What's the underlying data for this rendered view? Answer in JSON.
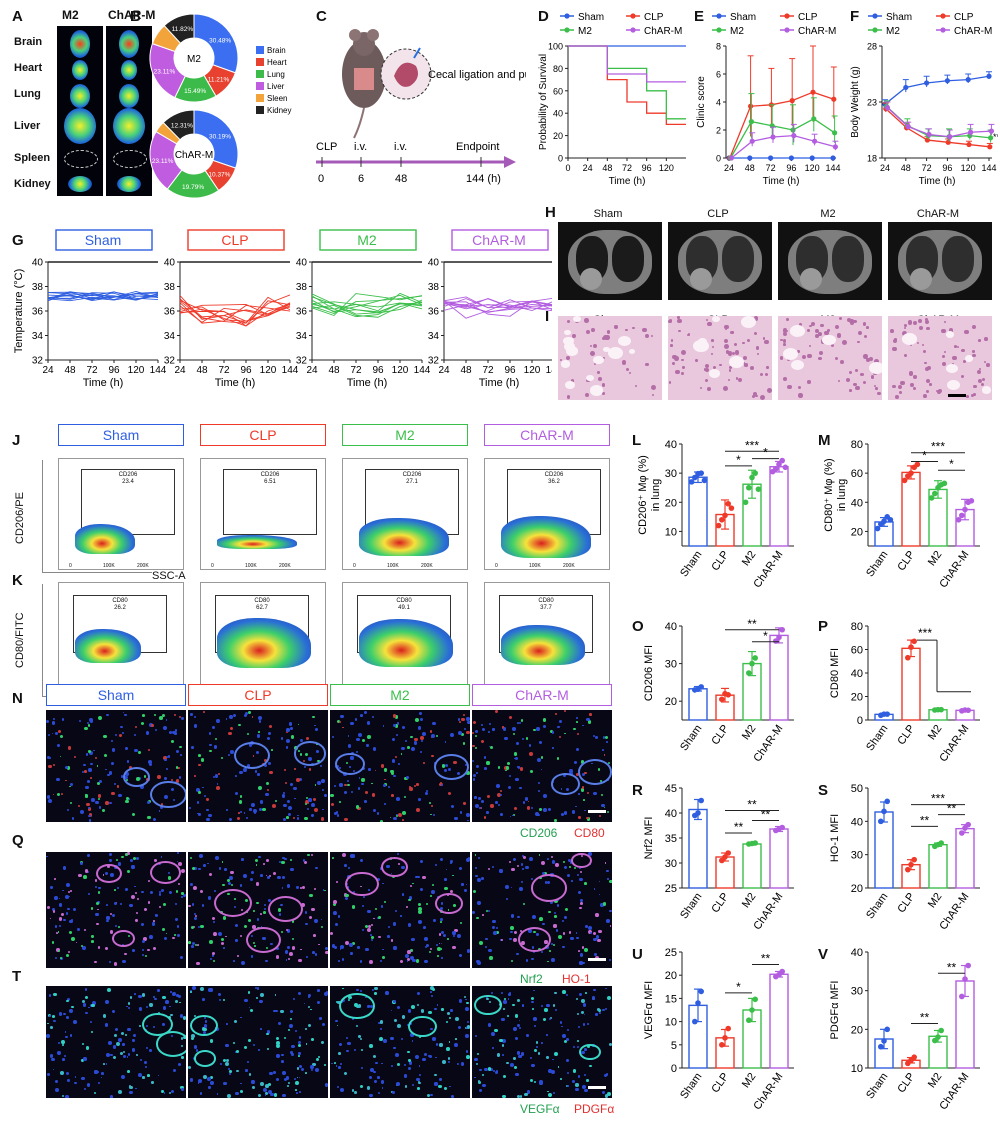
{
  "panels": {
    "A": "A",
    "B": "B",
    "C": "C",
    "D": "D",
    "E": "E",
    "F": "F",
    "G": "G",
    "H": "H",
    "I": "I",
    "J": "J",
    "K": "K",
    "L": "L",
    "M": "M",
    "N": "N",
    "O": "O",
    "P": "P",
    "Q": "Q",
    "R": "R",
    "S": "S",
    "T": "T",
    "U": "U",
    "V": "V"
  },
  "colors": {
    "sham": "#2f5fe0",
    "clp": "#ef3a2a",
    "m2": "#3bbf4a",
    "charm": "#b35de0"
  },
  "panelA": {
    "col1": "M2",
    "col2": "ChAR-M",
    "organs": [
      "Brain",
      "Heart",
      "Lung",
      "Liver",
      "Spleen",
      "Kidney"
    ]
  },
  "panelB": {
    "legend": [
      "Brain",
      "Heart",
      "Lung",
      "Liver",
      "Sleen",
      "Kidney"
    ],
    "legend_colors": [
      "#3b6ef0",
      "#e8412f",
      "#3dbb4a",
      "#c05ce0",
      "#f2a33a",
      "#222222"
    ],
    "donut1": {
      "center": "M2",
      "values": [
        30.48,
        11.21,
        15.49,
        23.11,
        7.89,
        11.82
      ],
      "labels": [
        "30.48%",
        "11.21%",
        "15.49%",
        "23.11%",
        "",
        "11.82%"
      ]
    },
    "donut2": {
      "center": "ChAR-M",
      "values": [
        30.19,
        10.37,
        19.79,
        23.11,
        4.23,
        12.31
      ],
      "labels": [
        "30.19%",
        "10.37%",
        "19.79%",
        "23.11%",
        "",
        "12.31%"
      ]
    }
  },
  "panelC": {
    "model": "Cecal ligation and puncture (CLP) model",
    "events": [
      "CLP",
      "i.v.",
      "i.v.",
      "Endpoint"
    ],
    "ticks": [
      "0",
      "6",
      "48",
      "144 (h)"
    ]
  },
  "chart_data": [
    {
      "id": "D",
      "type": "line",
      "xlabel": "Time (h)",
      "ylabel": "Probability of Survival",
      "x_ticks": [
        0,
        24,
        48,
        72,
        96,
        120
      ],
      "y_ticks": [
        0,
        20,
        40,
        60,
        80,
        100
      ],
      "xlim": [
        0,
        144
      ],
      "ylim": [
        0,
        100
      ],
      "series": [
        {
          "name": "Sham",
          "steps": [
            [
              0,
              100
            ],
            [
              144,
              100
            ]
          ]
        },
        {
          "name": "CLP",
          "steps": [
            [
              0,
              100
            ],
            [
              48,
              100
            ],
            [
              48,
              70
            ],
            [
              72,
              70
            ],
            [
              72,
              50
            ],
            [
              96,
              50
            ],
            [
              96,
              40
            ],
            [
              120,
              40
            ],
            [
              120,
              30
            ],
            [
              144,
              30
            ]
          ]
        },
        {
          "name": "M2",
          "steps": [
            [
              0,
              100
            ],
            [
              48,
              100
            ],
            [
              48,
              80
            ],
            [
              96,
              80
            ],
            [
              96,
              60
            ],
            [
              120,
              60
            ],
            [
              120,
              35
            ],
            [
              144,
              35
            ]
          ]
        },
        {
          "name": "ChAR-M",
          "steps": [
            [
              0,
              100
            ],
            [
              48,
              100
            ],
            [
              48,
              75
            ],
            [
              96,
              75
            ],
            [
              96,
              68
            ],
            [
              144,
              68
            ]
          ]
        }
      ]
    },
    {
      "id": "E",
      "type": "line",
      "xlabel": "Time (h)",
      "ylabel": "Clinic score",
      "x": [
        24,
        48,
        72,
        96,
        120,
        144
      ],
      "y_ticks": [
        0,
        2,
        4,
        6,
        8
      ],
      "ylim": [
        0,
        8
      ],
      "series": [
        {
          "name": "Sham",
          "values": [
            0,
            0,
            0,
            0,
            0,
            0
          ],
          "err": [
            0,
            0,
            0,
            0,
            0,
            0
          ]
        },
        {
          "name": "CLP",
          "values": [
            0,
            3.7,
            3.8,
            4.1,
            4.7,
            4.2
          ],
          "err": [
            0,
            3.6,
            2.6,
            3.0,
            3.5,
            2.3
          ]
        },
        {
          "name": "M2",
          "values": [
            0,
            2.6,
            2.3,
            2.0,
            2.8,
            1.8
          ],
          "err": [
            0,
            2.0,
            1.5,
            1.8,
            1.5,
            1.2
          ]
        },
        {
          "name": "ChAR-M",
          "values": [
            0,
            1.2,
            1.5,
            1.6,
            1.2,
            0.8
          ],
          "err": [
            0,
            0.6,
            0.7,
            0.8,
            0.5,
            0.4
          ]
        }
      ]
    },
    {
      "id": "F",
      "type": "line",
      "xlabel": "Time (h)",
      "ylabel": "Body Weight (g)",
      "x": [
        24,
        48,
        72,
        96,
        120,
        144
      ],
      "y_ticks": [
        18,
        23,
        28
      ],
      "ylim": [
        18,
        28
      ],
      "annotation": "**",
      "series": [
        {
          "name": "Sham",
          "values": [
            22.8,
            24.3,
            24.7,
            24.9,
            25.0,
            25.3
          ],
          "err": [
            0.4,
            0.7,
            0.6,
            0.5,
            0.5,
            0.4
          ]
        },
        {
          "name": "CLP",
          "values": [
            22.4,
            20.7,
            19.6,
            19.4,
            19.2,
            19.0
          ],
          "err": [
            0.5,
            0.4,
            0.3,
            0.3,
            0.3,
            0.3
          ]
        },
        {
          "name": "M2",
          "values": [
            22.6,
            20.9,
            20.0,
            19.9,
            20.0,
            19.8
          ],
          "err": [
            0.5,
            0.6,
            0.6,
            0.7,
            0.6,
            0.7
          ]
        },
        {
          "name": "ChAR-M",
          "values": [
            22.5,
            20.8,
            20.1,
            19.9,
            20.3,
            20.4
          ],
          "err": [
            0.5,
            0.4,
            0.5,
            0.6,
            0.7,
            0.6
          ]
        }
      ]
    },
    {
      "id": "L",
      "type": "bar",
      "ylabel": "CD206⁺ Mφ (%) in lung",
      "categories": [
        "Sham",
        "CLP",
        "M2",
        "ChAR-M"
      ],
      "ylim": [
        5,
        40
      ],
      "y_ticks": [
        10,
        20,
        30,
        40
      ],
      "values": [
        28.6,
        15.8,
        26.2,
        32.2
      ],
      "err": [
        1.8,
        5.0,
        4.8,
        1.8
      ],
      "points": [
        [
          27,
          28.5,
          29.8,
          30,
          27.5
        ],
        [
          12,
          14,
          15.5,
          19.5,
          18
        ],
        [
          20,
          25,
          28.5,
          30,
          24.5
        ],
        [
          30.5,
          31.5,
          33,
          34.3,
          32
        ]
      ],
      "sig": [
        {
          "a": 1,
          "b": 3,
          "text": "***",
          "y": 37.5
        },
        {
          "a": 2,
          "b": 3,
          "text": "*",
          "y": 35
        },
        {
          "a": 1,
          "b": 2,
          "text": "*",
          "y": 32.5
        }
      ]
    },
    {
      "id": "M",
      "type": "bar",
      "ylabel": "CD80⁺ Mφ (%) in lung",
      "categories": [
        "Sham",
        "CLP",
        "M2",
        "ChAR-M"
      ],
      "ylim": [
        10,
        80
      ],
      "y_ticks": [
        20,
        40,
        60,
        80
      ],
      "values": [
        26.5,
        60.5,
        48.8,
        35.0
      ],
      "err": [
        3.0,
        4.5,
        6.0,
        7.0
      ],
      "points": [
        [
          22,
          25,
          27,
          30,
          28
        ],
        [
          55,
          58,
          60,
          64,
          66
        ],
        [
          43,
          46,
          50,
          52,
          53
        ],
        [
          28,
          31,
          35,
          40,
          41
        ]
      ],
      "sig": [
        {
          "a": 1,
          "b": 3,
          "text": "***",
          "y": 74
        },
        {
          "a": 1,
          "b": 2,
          "text": "*",
          "y": 68
        },
        {
          "a": 2,
          "b": 3,
          "text": "*",
          "y": 62
        }
      ]
    },
    {
      "id": "O",
      "type": "bar",
      "ylabel": "CD206 MFI",
      "categories": [
        "Sham",
        "CLP",
        "M2",
        "ChAR-M"
      ],
      "ylim": [
        15,
        40
      ],
      "y_ticks": [
        20,
        30,
        40
      ],
      "values": [
        23.3,
        21.6,
        30.0,
        37.5
      ],
      "err": [
        0.6,
        1.8,
        3.2,
        2.0
      ],
      "points": [
        [
          23,
          23.2,
          23.8
        ],
        [
          20.5,
          22,
          21.7
        ],
        [
          27.5,
          30,
          31.5
        ],
        [
          36,
          37,
          39
        ]
      ],
      "sig": [
        {
          "a": 1,
          "b": 3,
          "text": "**",
          "y": 39
        },
        {
          "a": 2,
          "b": 3,
          "text": "*",
          "y": 35.8
        }
      ]
    },
    {
      "id": "P",
      "type": "bar",
      "ylabel": "CD80 MFI",
      "categories": [
        "Sham",
        "CLP",
        "M2",
        "ChAR-M"
      ],
      "ylim": [
        0,
        80
      ],
      "y_ticks": [
        0,
        20,
        40,
        60,
        80
      ],
      "values": [
        4.8,
        61.0,
        8.7,
        8.2
      ],
      "err": [
        1.0,
        7.0,
        0.4,
        0.7
      ],
      "points": [
        [
          4,
          5,
          5
        ],
        [
          53,
          62,
          67
        ],
        [
          8.5,
          8.8,
          8.8
        ],
        [
          7.8,
          8.5,
          8.3
        ]
      ],
      "sig": [
        {
          "a": 1,
          "b": 3,
          "text": "***",
          "y": 68,
          "bracket": "step"
        }
      ]
    },
    {
      "id": "R",
      "type": "bar",
      "ylabel": "Nrf2 MFI",
      "categories": [
        "Sham",
        "CLP",
        "M2",
        "ChAR-M"
      ],
      "ylim": [
        25,
        45
      ],
      "y_ticks": [
        25,
        30,
        35,
        40,
        45
      ],
      "values": [
        40.7,
        31.2,
        33.8,
        36.8
      ],
      "err": [
        2.0,
        0.8,
        0.2,
        0.5
      ],
      "points": [
        [
          39.5,
          40,
          42.5
        ],
        [
          30.5,
          31.2,
          32
        ],
        [
          33.8,
          33.9,
          34
        ],
        [
          36.5,
          36.8,
          37.1
        ]
      ],
      "sig": [
        {
          "a": 1,
          "b": 3,
          "text": "**",
          "y": 40.5
        },
        {
          "a": 2,
          "b": 3,
          "text": "**",
          "y": 38.5
        },
        {
          "a": 1,
          "b": 2,
          "text": "**",
          "y": 36
        }
      ]
    },
    {
      "id": "S",
      "type": "bar",
      "ylabel": "HO-1 MFI",
      "categories": [
        "Sham",
        "CLP",
        "M2",
        "ChAR-M"
      ],
      "ylim": [
        20,
        50
      ],
      "y_ticks": [
        20,
        30,
        40,
        50
      ],
      "values": [
        42.8,
        27.0,
        33.0,
        37.8
      ],
      "err": [
        3.0,
        1.5,
        0.5,
        1.2
      ],
      "points": [
        [
          40,
          43,
          46
        ],
        [
          25.5,
          27,
          28.5
        ],
        [
          32.5,
          33,
          33.5
        ],
        [
          36.5,
          38,
          39
        ]
      ],
      "sig": [
        {
          "a": 1,
          "b": 3,
          "text": "***",
          "y": 45
        },
        {
          "a": 2,
          "b": 3,
          "text": "**",
          "y": 42
        },
        {
          "a": 1,
          "b": 2,
          "text": "**",
          "y": 38.5
        }
      ]
    },
    {
      "id": "U",
      "type": "bar",
      "ylabel": "VEGFα MFI",
      "categories": [
        "Sham",
        "CLP",
        "M2",
        "ChAR-M"
      ],
      "ylim": [
        0,
        25
      ],
      "y_ticks": [
        0,
        5,
        10,
        15,
        20,
        25
      ],
      "values": [
        13.5,
        6.5,
        12.5,
        20.2
      ],
      "err": [
        3.5,
        1.8,
        2.5,
        0.6
      ],
      "points": [
        [
          10,
          14,
          16.5
        ],
        [
          5,
          6.5,
          8.5
        ],
        [
          10.3,
          12.5,
          14.8
        ],
        [
          19.7,
          20.1,
          20.8
        ]
      ],
      "sig": [
        {
          "a": 2,
          "b": 3,
          "text": "**",
          "y": 22.3
        },
        {
          "a": 1,
          "b": 2,
          "text": "*",
          "y": 16.2
        }
      ]
    },
    {
      "id": "V",
      "type": "bar",
      "ylabel": "PDGFα MFI",
      "categories": [
        "Sham",
        "CLP",
        "M2",
        "ChAR-M"
      ],
      "ylim": [
        10,
        40
      ],
      "y_ticks": [
        10,
        20,
        30,
        40
      ],
      "values": [
        17.5,
        12.0,
        18.2,
        32.5
      ],
      "err": [
        2.5,
        0.7,
        1.5,
        4.0
      ],
      "points": [
        [
          15.5,
          17,
          20
        ],
        [
          11.2,
          12,
          12.8
        ],
        [
          17.1,
          18,
          19.7
        ],
        [
          28.5,
          33,
          36.5
        ]
      ],
      "sig": [
        {
          "a": 2,
          "b": 3,
          "text": "**",
          "y": 34.5
        },
        {
          "a": 1,
          "b": 2,
          "text": "**",
          "y": 21.5
        }
      ]
    },
    {
      "id": "G",
      "type": "line",
      "ylabel": "Temperature (°C)",
      "xlabel": "Time (h)",
      "x_ticks": [
        24,
        48,
        72,
        96,
        120,
        144
      ],
      "y_ticks": [
        32,
        34,
        36,
        38,
        40
      ],
      "ylim": [
        32,
        40
      ],
      "groups": [
        "Sham",
        "CLP",
        "M2",
        "ChAR-M"
      ]
    }
  ],
  "groups": [
    "Sham",
    "CLP",
    "M2",
    "ChAR-M"
  ],
  "flow": {
    "J": {
      "ylabel": "CD206/PE",
      "xlabel": "SSC-A",
      "gate": "CD206",
      "values": [
        "23.4",
        "6.51",
        "27.1",
        "36.2"
      ]
    },
    "K": {
      "ylabel": "CD80/FITC",
      "xlabel": "SSC-A",
      "gate": "CD80",
      "values": [
        "26.2",
        "62.7",
        "49.1",
        "37.7"
      ]
    },
    "xticks": [
      "0",
      "100K",
      "200K"
    ]
  },
  "if": {
    "N": {
      "ch1": "CD206",
      "ch2": "CD80"
    },
    "Q": {
      "ch1": "Nrf2",
      "ch2": "HO-1"
    },
    "T": {
      "ch1": "VEGFα",
      "ch2": "PDGFα"
    }
  }
}
